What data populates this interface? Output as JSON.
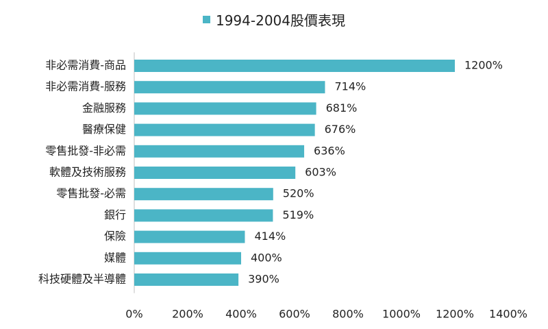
{
  "chart_data": {
    "type": "bar",
    "orientation": "horizontal",
    "categories": [
      "非必需消費-商品",
      "非必需消費-服務",
      "金融服務",
      "醫療保健",
      "零售批發-非必需",
      "軟體及技術服務",
      "零售批發-必需",
      "銀行",
      "保險",
      "媒體",
      "科技硬體及半導體"
    ],
    "series": [
      {
        "name": "1994-2004股價表現",
        "values": [
          1200,
          714,
          681,
          676,
          636,
          603,
          520,
          519,
          414,
          400,
          390
        ]
      }
    ],
    "value_labels": [
      "1200%",
      "714%",
      "681%",
      "676%",
      "636%",
      "603%",
      "520%",
      "519%",
      "414%",
      "400%",
      "390%"
    ],
    "xlim": [
      0,
      1400
    ],
    "x_ticks": [
      0,
      200,
      400,
      600,
      800,
      1000,
      1200,
      1400
    ],
    "x_tick_labels": [
      "0%",
      "200%",
      "400%",
      "600%",
      "800%",
      "1000%",
      "1200%",
      "1400%"
    ],
    "legend_position": "top-center",
    "grid": false,
    "bar_color": "#4bb5c6"
  }
}
